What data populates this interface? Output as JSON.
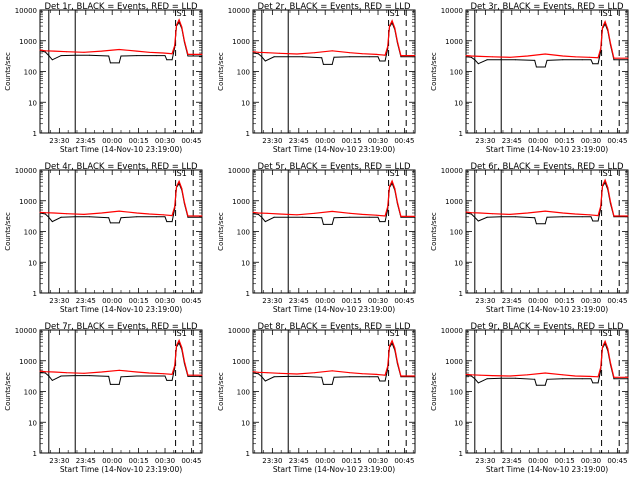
{
  "x_tick_labels": [
    "23:30",
    "23:45",
    "00:00",
    "00:15",
    "00:30",
    "00:45"
  ],
  "y_tick_labels": [
    "1",
    "10",
    "100",
    "1000",
    "10000"
  ],
  "x_title": "Start Time (14-Nov-10 23:19:00)",
  "y_title": "Counts/sec",
  "marker_label": "S1",
  "colors": {
    "events": "#000000",
    "lld": "#ff0000"
  },
  "chart_data": [
    {
      "type": "line",
      "title": "Det 1r, BLACK = Events, RED = LLD",
      "xlabel": "Start Time (14-Nov-10 23:19:00)",
      "ylabel": "Counts/sec",
      "x_unit": "minutes since 23:19:00",
      "xlim": [
        0,
        92
      ],
      "ylim": [
        1,
        10000
      ],
      "y_scale": "log",
      "vlines_solid": [
        5,
        20
      ],
      "vlines_dashed": [
        77,
        87
      ],
      "annotation": "S1",
      "series": [
        {
          "name": "Events",
          "x": [
            0,
            3,
            5,
            7,
            12,
            20,
            28,
            39,
            40,
            45,
            46,
            55,
            66,
            71,
            72,
            75,
            76.5,
            77.5,
            79,
            80.5,
            82,
            84,
            92
          ],
          "values": [
            470,
            430,
            330,
            240,
            330,
            340,
            340,
            320,
            190,
            190,
            320,
            330,
            330,
            330,
            240,
            240,
            600,
            3000,
            4000,
            2500,
            900,
            320,
            320
          ]
        },
        {
          "name": "LLD",
          "x": [
            0,
            3,
            8,
            15,
            25,
            35,
            45,
            55,
            62,
            70,
            75,
            76.5,
            77.5,
            79,
            80.5,
            82,
            84,
            92
          ],
          "values": [
            500,
            470,
            460,
            440,
            420,
            460,
            520,
            460,
            420,
            400,
            380,
            700,
            3200,
            4800,
            2800,
            1000,
            360,
            360
          ]
        }
      ]
    },
    {
      "type": "line",
      "title": "Det 2r, BLACK = Events, RED = LLD",
      "xlabel": "Start Time (14-Nov-10 23:19:00)",
      "ylabel": "Counts/sec",
      "x_unit": "minutes since 23:19:00",
      "xlim": [
        0,
        92
      ],
      "ylim": [
        1,
        10000
      ],
      "y_scale": "log",
      "vlines_solid": [
        5,
        20
      ],
      "vlines_dashed": [
        77,
        87
      ],
      "annotation": "S1",
      "series": [
        {
          "name": "Events",
          "x": [
            0,
            3,
            5,
            7,
            12,
            20,
            28,
            39,
            40,
            45,
            46,
            55,
            66,
            71,
            72,
            75,
            76.5,
            77.5,
            79,
            80.5,
            82,
            84,
            92
          ],
          "values": [
            400,
            380,
            300,
            220,
            300,
            300,
            300,
            280,
            170,
            170,
            290,
            300,
            300,
            300,
            220,
            220,
            550,
            2800,
            3800,
            2300,
            850,
            300,
            300
          ]
        },
        {
          "name": "LLD",
          "x": [
            0,
            3,
            8,
            15,
            25,
            35,
            45,
            55,
            62,
            70,
            75,
            76.5,
            77.5,
            79,
            80.5,
            82,
            84,
            92
          ],
          "values": [
            440,
            420,
            410,
            390,
            370,
            410,
            470,
            410,
            380,
            360,
            340,
            650,
            3000,
            4500,
            2600,
            950,
            330,
            330
          ]
        }
      ]
    },
    {
      "type": "line",
      "title": "Det 3r, BLACK = Events, RED = LLD",
      "xlabel": "Start Time (14-Nov-10 23:19:00)",
      "ylabel": "Counts/sec",
      "x_unit": "minutes since 23:19:00",
      "xlim": [
        0,
        92
      ],
      "ylim": [
        1,
        10000
      ],
      "y_scale": "log",
      "vlines_solid": [
        5,
        20
      ],
      "vlines_dashed": [
        77,
        87
      ],
      "annotation": "S1",
      "series": [
        {
          "name": "Events",
          "x": [
            0,
            3,
            5,
            7,
            12,
            20,
            28,
            39,
            40,
            45,
            46,
            55,
            66,
            71,
            72,
            75,
            76.5,
            77.5,
            79,
            80.5,
            82,
            84,
            92
          ],
          "values": [
            300,
            290,
            240,
            180,
            240,
            240,
            240,
            230,
            140,
            140,
            230,
            240,
            240,
            240,
            180,
            180,
            450,
            2500,
            3500,
            2100,
            750,
            240,
            240
          ]
        },
        {
          "name": "LLD",
          "x": [
            0,
            3,
            8,
            15,
            25,
            35,
            45,
            55,
            62,
            70,
            75,
            76.5,
            77.5,
            79,
            80.5,
            82,
            84,
            92
          ],
          "values": [
            330,
            320,
            310,
            300,
            290,
            320,
            370,
            320,
            300,
            290,
            280,
            550,
            2700,
            4200,
            2400,
            850,
            270,
            270
          ]
        }
      ]
    },
    {
      "type": "line",
      "title": "Det 4r, BLACK = Events, RED = LLD",
      "xlabel": "Start Time (14-Nov-10 23:19:00)",
      "ylabel": "Counts/sec",
      "x_unit": "minutes since 23:19:00",
      "xlim": [
        0,
        92
      ],
      "ylim": [
        1,
        10000
      ],
      "y_scale": "log",
      "vlines_solid": [
        5,
        20
      ],
      "vlines_dashed": [
        77,
        87
      ],
      "annotation": "S1",
      "series": [
        {
          "name": "Events",
          "x": [
            0,
            3,
            5,
            7,
            12,
            20,
            28,
            39,
            40,
            45,
            46,
            55,
            66,
            71,
            72,
            75,
            76.5,
            77.5,
            79,
            80.5,
            82,
            84,
            92
          ],
          "values": [
            400,
            370,
            290,
            210,
            290,
            300,
            300,
            280,
            190,
            190,
            280,
            300,
            300,
            300,
            210,
            210,
            550,
            2700,
            3600,
            2200,
            800,
            290,
            290
          ]
        },
        {
          "name": "LLD",
          "x": [
            0,
            3,
            8,
            15,
            25,
            35,
            45,
            55,
            62,
            70,
            75,
            76.5,
            77.5,
            79,
            80.5,
            82,
            84,
            92
          ],
          "values": [
            420,
            410,
            400,
            380,
            360,
            400,
            460,
            400,
            370,
            350,
            330,
            650,
            2900,
            4300,
            2500,
            900,
            320,
            320
          ]
        }
      ]
    },
    {
      "type": "line",
      "title": "Det 5r, BLACK = Events, RED = LLD",
      "xlabel": "Start Time (14-Nov-10 23:19:00)",
      "ylabel": "Counts/sec",
      "x_unit": "minutes since 23:19:00",
      "xlim": [
        0,
        92
      ],
      "ylim": [
        1,
        10000
      ],
      "y_scale": "log",
      "vlines_solid": [
        5,
        20
      ],
      "vlines_dashed": [
        77,
        87
      ],
      "annotation": "S1",
      "series": [
        {
          "name": "Events",
          "x": [
            0,
            3,
            5,
            7,
            12,
            20,
            28,
            39,
            40,
            45,
            46,
            55,
            66,
            71,
            72,
            75,
            76.5,
            77.5,
            79,
            80.5,
            82,
            84,
            92
          ],
          "values": [
            380,
            360,
            290,
            210,
            290,
            290,
            290,
            280,
            170,
            170,
            280,
            290,
            290,
            290,
            210,
            210,
            520,
            2700,
            3700,
            2200,
            800,
            290,
            290
          ]
        },
        {
          "name": "LLD",
          "x": [
            0,
            3,
            8,
            15,
            25,
            35,
            45,
            55,
            62,
            70,
            75,
            76.5,
            77.5,
            79,
            80.5,
            82,
            84,
            92
          ],
          "values": [
            420,
            400,
            390,
            370,
            350,
            390,
            450,
            390,
            360,
            340,
            320,
            640,
            2900,
            4400,
            2500,
            900,
            310,
            310
          ]
        }
      ]
    },
    {
      "type": "line",
      "title": "Det 6r, BLACK = Events, RED = LLD",
      "xlabel": "Start Time (14-Nov-10 23:19:00)",
      "ylabel": "Counts/sec",
      "x_unit": "minutes since 23:19:00",
      "xlim": [
        0,
        92
      ],
      "ylim": [
        1,
        10000
      ],
      "y_scale": "log",
      "vlines_solid": [
        5,
        20
      ],
      "vlines_dashed": [
        77,
        87
      ],
      "annotation": "S1",
      "series": [
        {
          "name": "Events",
          "x": [
            0,
            3,
            5,
            7,
            12,
            20,
            28,
            39,
            40,
            45,
            46,
            55,
            66,
            71,
            72,
            75,
            76.5,
            77.5,
            79,
            80.5,
            82,
            84,
            92
          ],
          "values": [
            400,
            370,
            290,
            220,
            290,
            300,
            300,
            280,
            180,
            180,
            290,
            300,
            300,
            300,
            220,
            220,
            560,
            2900,
            3900,
            2300,
            820,
            300,
            300
          ]
        },
        {
          "name": "LLD",
          "x": [
            0,
            3,
            8,
            15,
            25,
            35,
            45,
            55,
            62,
            70,
            75,
            76.5,
            77.5,
            79,
            80.5,
            82,
            84,
            92
          ],
          "values": [
            430,
            410,
            400,
            380,
            360,
            400,
            460,
            400,
            370,
            350,
            330,
            660,
            3100,
            4700,
            2700,
            950,
            320,
            320
          ]
        }
      ]
    },
    {
      "type": "line",
      "title": "Det 7r, BLACK = Events, RED = LLD",
      "xlabel": "Start Time (14-Nov-10 23:19:00)",
      "ylabel": "Counts/sec",
      "x_unit": "minutes since 23:19:00",
      "xlim": [
        0,
        92
      ],
      "ylim": [
        1,
        10000
      ],
      "y_scale": "log",
      "vlines_solid": [
        5,
        20
      ],
      "vlines_dashed": [
        77,
        87
      ],
      "annotation": "S1",
      "series": [
        {
          "name": "Events",
          "x": [
            0,
            3,
            5,
            7,
            12,
            20,
            28,
            39,
            40,
            45,
            46,
            55,
            66,
            71,
            72,
            75,
            76.5,
            77.5,
            79,
            80.5,
            82,
            84,
            92
          ],
          "values": [
            420,
            400,
            320,
            230,
            320,
            330,
            330,
            310,
            170,
            170,
            300,
            320,
            320,
            320,
            230,
            230,
            580,
            2800,
            3800,
            2300,
            820,
            310,
            310
          ]
        },
        {
          "name": "LLD",
          "x": [
            0,
            3,
            8,
            15,
            25,
            35,
            45,
            55,
            62,
            70,
            75,
            76.5,
            77.5,
            79,
            80.5,
            82,
            84,
            92
          ],
          "values": [
            460,
            440,
            430,
            410,
            390,
            430,
            490,
            430,
            400,
            380,
            360,
            690,
            3100,
            4600,
            2700,
            950,
            340,
            340
          ]
        }
      ]
    },
    {
      "type": "line",
      "title": "Det 8r, BLACK = Events, RED = LLD",
      "xlabel": "Start Time (14-Nov-10 23:19:00)",
      "ylabel": "Counts/sec",
      "x_unit": "minutes since 23:19:00",
      "xlim": [
        0,
        92
      ],
      "ylim": [
        1,
        10000
      ],
      "y_scale": "log",
      "vlines_solid": [
        5,
        20
      ],
      "vlines_dashed": [
        77,
        87
      ],
      "annotation": "S1",
      "series": [
        {
          "name": "Events",
          "x": [
            0,
            3,
            5,
            7,
            12,
            20,
            28,
            39,
            40,
            45,
            46,
            55,
            66,
            71,
            72,
            75,
            76.5,
            77.5,
            79,
            80.5,
            82,
            84,
            92
          ],
          "values": [
            400,
            380,
            300,
            220,
            300,
            310,
            310,
            290,
            170,
            170,
            290,
            300,
            300,
            300,
            220,
            220,
            540,
            2700,
            3700,
            2200,
            800,
            300,
            300
          ]
        },
        {
          "name": "LLD",
          "x": [
            0,
            3,
            8,
            15,
            25,
            35,
            45,
            55,
            62,
            70,
            75,
            76.5,
            77.5,
            79,
            80.5,
            82,
            84,
            92
          ],
          "values": [
            440,
            420,
            410,
            390,
            370,
            410,
            470,
            410,
            380,
            360,
            340,
            660,
            3000,
            4500,
            2600,
            920,
            320,
            320
          ]
        }
      ]
    },
    {
      "type": "line",
      "title": "Det 9r, BLACK = Events, RED = LLD",
      "xlabel": "Start Time (14-Nov-10 23:19:00)",
      "ylabel": "Counts/sec",
      "x_unit": "minutes since 23:19:00",
      "xlim": [
        0,
        92
      ],
      "ylim": [
        1,
        10000
      ],
      "y_scale": "log",
      "vlines_solid": [
        5,
        20
      ],
      "vlines_dashed": [
        77,
        87
      ],
      "annotation": "S1",
      "series": [
        {
          "name": "Events",
          "x": [
            0,
            3,
            5,
            7,
            12,
            20,
            28,
            39,
            40,
            45,
            46,
            55,
            66,
            71,
            72,
            75,
            76.5,
            77.5,
            79,
            80.5,
            82,
            84,
            92
          ],
          "values": [
            330,
            320,
            260,
            190,
            260,
            270,
            270,
            250,
            160,
            160,
            250,
            260,
            260,
            260,
            190,
            190,
            480,
            2600,
            3600,
            2100,
            760,
            260,
            260
          ]
        },
        {
          "name": "LLD",
          "x": [
            0,
            3,
            8,
            15,
            25,
            35,
            45,
            55,
            62,
            70,
            75,
            76.5,
            77.5,
            79,
            80.5,
            82,
            84,
            92
          ],
          "values": [
            360,
            350,
            340,
            330,
            320,
            350,
            400,
            350,
            320,
            310,
            300,
            600,
            2800,
            4300,
            2500,
            880,
            290,
            290
          ]
        }
      ]
    }
  ]
}
